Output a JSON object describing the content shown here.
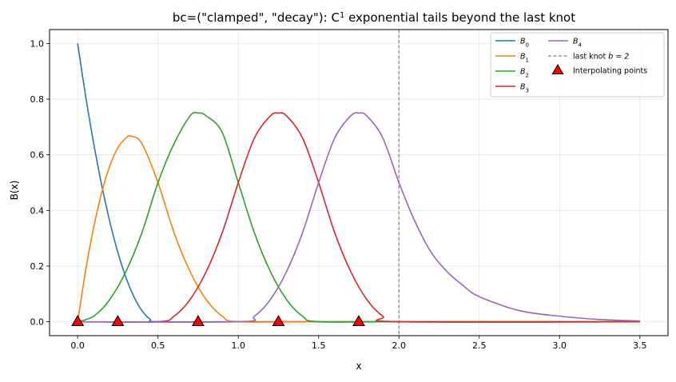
{
  "chart_data": {
    "type": "line",
    "title": "bc=(\"clamped\", \"decay\"): C",
    "title_sup": "1",
    "title_rest": " exponential tails beyond the last knot",
    "xlabel": "x",
    "ylabel": "B(x)",
    "xlim": [
      -0.175,
      3.675
    ],
    "ylim": [
      -0.05,
      1.05
    ],
    "xticks": [
      0.0,
      0.5,
      1.0,
      1.5,
      2.0,
      2.5,
      3.0,
      3.5
    ],
    "xtick_labels": [
      "0.0",
      "0.5",
      "1.0",
      "1.5",
      "2.0",
      "2.5",
      "3.0",
      "3.5"
    ],
    "yticks": [
      0.0,
      0.2,
      0.4,
      0.6,
      0.8,
      1.0
    ],
    "ytick_labels": [
      "0.0",
      "0.2",
      "0.4",
      "0.6",
      "0.8",
      "1.0"
    ],
    "grid": true,
    "legend_position": "top-right",
    "legend_columns": 2,
    "series": [
      {
        "name": "B0",
        "label_main": "B",
        "label_sub": "0",
        "color": "#1f77b4",
        "x": [
          0.0,
          0.05,
          0.1,
          0.15,
          0.2,
          0.25,
          0.3,
          0.35,
          0.4,
          0.45,
          0.5,
          1.0,
          2.0,
          3.5
        ],
        "y": [
          1.0,
          0.81,
          0.64,
          0.49,
          0.36,
          0.25,
          0.16,
          0.09,
          0.04,
          0.01,
          0.0,
          0.0,
          0.0,
          0.0
        ]
      },
      {
        "name": "B1",
        "label_main": "B",
        "label_sub": "1",
        "color": "#ff7f0e",
        "x": [
          0.0,
          0.05,
          0.1,
          0.15,
          0.2,
          0.25,
          0.3,
          0.333,
          0.4,
          0.5,
          0.6,
          0.7,
          0.8,
          0.9,
          1.0,
          1.5,
          3.5
        ],
        "y": [
          0.0,
          0.185,
          0.34,
          0.465,
          0.56,
          0.625,
          0.66,
          0.667,
          0.64,
          0.5,
          0.32,
          0.18,
          0.08,
          0.02,
          0.0,
          0.0,
          0.0
        ]
      },
      {
        "name": "B2",
        "label_main": "B",
        "label_sub": "2",
        "color": "#2ca02c",
        "x": [
          0.0,
          0.1,
          0.2,
          0.3,
          0.4,
          0.5,
          0.6,
          0.7,
          0.75,
          0.8,
          0.9,
          1.0,
          1.1,
          1.2,
          1.3,
          1.4,
          1.5,
          2.0,
          3.5
        ],
        "y": [
          0.0,
          0.02,
          0.08,
          0.18,
          0.32,
          0.5,
          0.64,
          0.74,
          0.75,
          0.74,
          0.68,
          0.5,
          0.32,
          0.18,
          0.08,
          0.02,
          0.0,
          0.0,
          0.0
        ]
      },
      {
        "name": "B3",
        "label_main": "B",
        "label_sub": "3",
        "color": "#d62728",
        "x": [
          0.0,
          0.5,
          0.6,
          0.7,
          0.8,
          0.9,
          1.0,
          1.1,
          1.2,
          1.25,
          1.3,
          1.4,
          1.5,
          1.6,
          1.7,
          1.8,
          1.9,
          2.0,
          3.5
        ],
        "y": [
          0.0,
          0.0,
          0.02,
          0.08,
          0.18,
          0.32,
          0.5,
          0.66,
          0.74,
          0.75,
          0.74,
          0.66,
          0.5,
          0.32,
          0.18,
          0.08,
          0.02,
          0.0,
          0.0
        ]
      },
      {
        "name": "B4",
        "label_main": "B",
        "label_sub": "4",
        "color": "#9467bd",
        "x": [
          0.0,
          1.0,
          1.1,
          1.2,
          1.3,
          1.4,
          1.5,
          1.6,
          1.7,
          1.75,
          1.8,
          1.9,
          2.0,
          2.1,
          2.2,
          2.3,
          2.4,
          2.5,
          2.75,
          3.0,
          3.25,
          3.5
        ],
        "y": [
          0.0,
          0.0,
          0.02,
          0.08,
          0.18,
          0.32,
          0.5,
          0.66,
          0.74,
          0.75,
          0.74,
          0.66,
          0.5,
          0.36,
          0.25,
          0.18,
          0.13,
          0.09,
          0.04,
          0.02,
          0.008,
          0.003
        ]
      }
    ],
    "vline": {
      "x": 2.0,
      "label": "last knot ",
      "label_math": "b = 2",
      "color": "#808080"
    },
    "markers": {
      "label": "Interpolating points",
      "color": "#ff0000",
      "x": [
        0.0,
        0.25,
        0.75,
        1.25,
        1.75
      ],
      "y": [
        0.0,
        0.0,
        0.0,
        0.0,
        0.0
      ]
    }
  }
}
